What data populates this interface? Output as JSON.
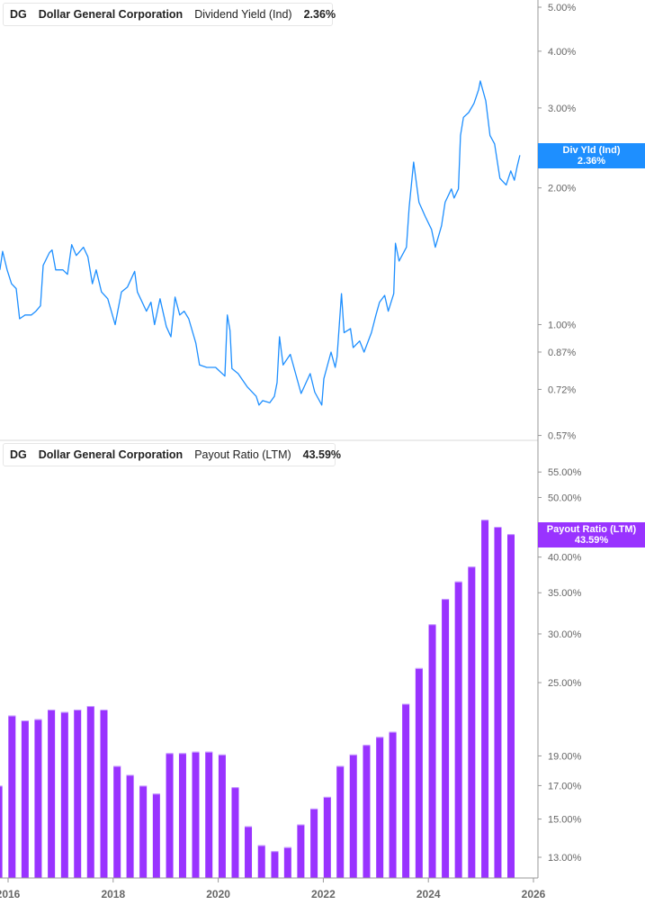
{
  "chart_data": [
    {
      "type": "line",
      "legend": {
        "ticker": "DG",
        "company": "Dollar General Corporation",
        "metric": "Dividend Yield (Ind)",
        "value": "2.36%"
      },
      "callout": {
        "label": "Div Yld (Ind)",
        "value": "2.36%"
      },
      "color": "#1e8fff",
      "scale": "log",
      "ylim": [
        0.57,
        5.0
      ],
      "y_tick_labels": [
        "5.00%",
        "4.00%",
        "3.00%",
        "2.00%",
        "1.00%",
        "0.87%",
        "0.72%",
        "0.57%"
      ],
      "y_ticks": [
        5.0,
        4.0,
        3.0,
        2.0,
        1.0,
        0.87,
        0.72,
        0.57
      ],
      "series": [
        {
          "x": [
            "2015-11-05",
            "2015-11-24",
            "2015-12-25",
            "2016-01-25",
            "2016-02-26",
            "2016-03-21",
            "2016-04-28",
            "2016-06-11",
            "2016-07-12",
            "2016-08-13",
            "2016-09-01",
            "2016-10-14",
            "2016-11-02",
            "2016-11-27",
            "2017-01-16",
            "2017-02-17",
            "2017-03-18",
            "2017-04-19",
            "2017-06-08",
            "2017-07-09",
            "2017-08-09",
            "2017-09-04",
            "2017-10-11",
            "2017-11-24",
            "2018-01-14",
            "2018-02-27",
            "2018-04-10",
            "2018-05-30",
            "2018-06-18",
            "2018-08-20",
            "2018-09-20",
            "2018-10-15",
            "2018-11-22",
            "2019-01-05",
            "2019-02-06",
            "2019-03-07",
            "2019-04-08",
            "2019-05-09",
            "2019-06-10",
            "2019-07-29",
            "2019-08-24",
            "2019-10-13",
            "2019-12-14",
            "2020-02-16",
            "2020-03-04",
            "2020-03-23",
            "2020-04-05",
            "2020-05-18",
            "2020-07-20",
            "2020-09-21",
            "2020-10-10",
            "2020-11-05",
            "2020-12-24",
            "2021-01-25",
            "2021-02-13",
            "2021-03-02",
            "2021-03-27",
            "2021-05-16",
            "2021-07-30",
            "2021-10-01",
            "2021-11-02",
            "2021-12-21",
            "2022-01-04",
            "2022-02-23",
            "2022-03-24",
            "2022-04-06",
            "2022-05-07",
            "2022-05-25",
            "2022-07-08",
            "2022-07-27",
            "2022-09-10",
            "2022-10-11",
            "2022-12-01",
            "2023-01-01",
            "2023-01-26",
            "2023-03-03",
            "2023-03-28",
            "2023-05-05",
            "2023-05-17",
            "2023-06-11",
            "2023-08-01",
            "2023-08-20",
            "2023-09-20",
            "2023-10-27",
            "2023-12-10",
            "2024-01-23",
            "2024-02-18",
            "2024-04-01",
            "2024-04-26",
            "2024-06-09",
            "2024-06-28",
            "2024-07-28",
            "2024-08-11",
            "2024-09-01",
            "2024-10-07",
            "2024-11-13",
            "2024-12-15",
            "2024-12-27",
            "2025-02-03",
            "2025-03-04",
            "2025-04-05",
            "2025-05-12",
            "2025-06-25",
            "2025-07-27",
            "2025-08-21",
            "2025-09-09",
            "2025-09-28"
          ],
          "y": [
            1.32,
            1.45,
            1.32,
            1.23,
            1.2,
            1.03,
            1.05,
            1.05,
            1.07,
            1.1,
            1.35,
            1.44,
            1.46,
            1.32,
            1.32,
            1.29,
            1.5,
            1.42,
            1.48,
            1.41,
            1.23,
            1.32,
            1.18,
            1.14,
            1.0,
            1.18,
            1.21,
            1.31,
            1.18,
            1.07,
            1.12,
            1.0,
            1.14,
            0.99,
            0.94,
            1.15,
            1.05,
            1.07,
            1.03,
            0.91,
            0.815,
            0.805,
            0.805,
            0.77,
            1.05,
            0.97,
            0.8,
            0.78,
            0.73,
            0.695,
            0.665,
            0.68,
            0.673,
            0.695,
            0.745,
            0.94,
            0.815,
            0.86,
            0.705,
            0.78,
            0.71,
            0.665,
            0.76,
            0.87,
            0.805,
            0.85,
            1.17,
            0.96,
            0.98,
            0.89,
            0.92,
            0.87,
            0.96,
            1.05,
            1.12,
            1.16,
            1.07,
            1.17,
            1.51,
            1.38,
            1.48,
            1.81,
            2.28,
            1.86,
            1.73,
            1.62,
            1.48,
            1.65,
            1.86,
            1.99,
            1.9,
            1.99,
            2.61,
            2.86,
            2.93,
            3.07,
            3.29,
            3.44,
            3.11,
            2.61,
            2.5,
            2.1,
            2.03,
            2.18,
            2.08,
            2.23,
            2.36
          ]
        }
      ]
    },
    {
      "type": "bar",
      "legend": {
        "ticker": "DG",
        "company": "Dollar General Corporation",
        "metric": "Payout Ratio (LTM)",
        "value": "43.59%"
      },
      "callout": {
        "label": "Payout Ratio (LTM)",
        "value": "43.59%"
      },
      "color": "#9933ff",
      "scale": "log",
      "ylim": [
        13.0,
        55.0
      ],
      "y_tick_labels": [
        "55.00%",
        "50.00%",
        "40.00%",
        "35.00%",
        "30.00%",
        "25.00%",
        "19.00%",
        "17.00%",
        "15.00%",
        "13.00%"
      ],
      "y_ticks": [
        55,
        50,
        40,
        35,
        30,
        25,
        19,
        17,
        15,
        13
      ],
      "categories": [
        "2015-10",
        "2016-01",
        "2016-04",
        "2016-07",
        "2016-10",
        "2017-01",
        "2017-04",
        "2017-07",
        "2017-10",
        "2018-01",
        "2018-04",
        "2018-07",
        "2018-10",
        "2019-01",
        "2019-04",
        "2019-07",
        "2019-10",
        "2020-01",
        "2020-04",
        "2020-07",
        "2020-10",
        "2021-01",
        "2021-04",
        "2021-07",
        "2021-10",
        "2022-01",
        "2022-04",
        "2022-07",
        "2022-10",
        "2023-01",
        "2023-04",
        "2023-07",
        "2023-10",
        "2024-01",
        "2024-04",
        "2024-07",
        "2024-10",
        "2025-01",
        "2025-04",
        "2025-07"
      ],
      "values": [
        17.0,
        22.1,
        21.7,
        21.8,
        22.6,
        22.4,
        22.6,
        22.9,
        22.6,
        18.3,
        17.7,
        17.0,
        16.5,
        19.2,
        19.2,
        19.3,
        19.3,
        19.1,
        16.9,
        14.6,
        13.6,
        13.3,
        13.5,
        14.7,
        15.6,
        16.3,
        18.3,
        19.1,
        19.8,
        20.4,
        20.8,
        23.1,
        26.4,
        31.1,
        34.2,
        36.5,
        38.6,
        46.0,
        44.8,
        43.59
      ]
    }
  ],
  "x_axis": {
    "tick_labels": [
      "2016",
      "2018",
      "2020",
      "2022",
      "2024",
      "2026"
    ],
    "ticks": [
      2016,
      2018,
      2020,
      2022,
      2024,
      2026
    ]
  }
}
